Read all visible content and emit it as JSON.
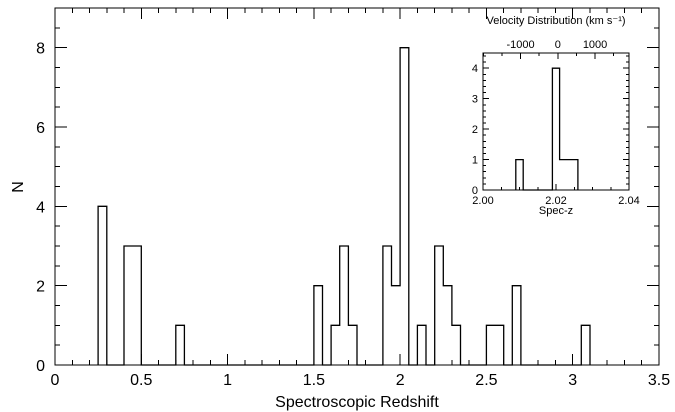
{
  "chart_data": [
    {
      "type": "histogram",
      "title": "",
      "xlabel": "Spectroscopic Redshift",
      "ylabel": "N",
      "xlim": [
        0,
        3.5
      ],
      "ylim": [
        0,
        9
      ],
      "xticks": [
        0,
        0.5,
        1,
        1.5,
        2,
        2.5,
        3,
        3.5
      ],
      "xtick_labels": [
        "0",
        "0.5",
        "1",
        "1.5",
        "2",
        "2.5",
        "3",
        "3.5"
      ],
      "yticks": [
        0,
        2,
        4,
        6,
        8
      ],
      "ytick_labels": [
        "0",
        "2",
        "4",
        "6",
        "8"
      ],
      "grid": false,
      "bin_width": 0.05,
      "bins": [
        {
          "x0": 0.25,
          "x1": 0.3,
          "count": 4
        },
        {
          "x0": 0.4,
          "x1": 0.5,
          "count": 3
        },
        {
          "x0": 0.7,
          "x1": 0.75,
          "count": 1
        },
        {
          "x0": 1.5,
          "x1": 1.55,
          "count": 2
        },
        {
          "x0": 1.6,
          "x1": 1.65,
          "count": 1
        },
        {
          "x0": 1.65,
          "x1": 1.7,
          "count": 3
        },
        {
          "x0": 1.7,
          "x1": 1.75,
          "count": 1
        },
        {
          "x0": 1.9,
          "x1": 1.95,
          "count": 3
        },
        {
          "x0": 1.95,
          "x1": 2.0,
          "count": 2
        },
        {
          "x0": 2.0,
          "x1": 2.05,
          "count": 8
        },
        {
          "x0": 2.1,
          "x1": 2.15,
          "count": 1
        },
        {
          "x0": 2.2,
          "x1": 2.25,
          "count": 3
        },
        {
          "x0": 2.25,
          "x1": 2.3,
          "count": 2
        },
        {
          "x0": 2.3,
          "x1": 2.35,
          "count": 1
        },
        {
          "x0": 2.5,
          "x1": 2.6,
          "count": 1
        },
        {
          "x0": 2.65,
          "x1": 2.7,
          "count": 2
        },
        {
          "x0": 3.05,
          "x1": 3.1,
          "count": 1
        }
      ]
    },
    {
      "type": "histogram",
      "title": "Velocity Distribution (km s⁻¹)",
      "xlabel": "Spec-z",
      "ylabel": "",
      "xlim": [
        2.0,
        2.04
      ],
      "ylim": [
        0,
        4.5
      ],
      "xticks": [
        2.0,
        2.02,
        2.04
      ],
      "xtick_labels": [
        "2.00",
        "2.02",
        "2.04"
      ],
      "yticks": [
        0,
        1,
        2,
        3,
        4
      ],
      "ytick_labels": [
        "0",
        "1",
        "2",
        "3",
        "4"
      ],
      "top_axis": {
        "ticks": [
          -1000,
          0,
          1000
        ],
        "tick_labels": [
          "-1000",
          "0",
          "1000"
        ],
        "minor_step": 500,
        "z_at_zero_velocity": 2.0205,
        "km_s_per_unit_z": 98000
      },
      "legend": "none",
      "grid": false,
      "bins": [
        {
          "x0": 2.009,
          "x1": 2.011,
          "count": 1
        },
        {
          "x0": 2.019,
          "x1": 2.021,
          "count": 4
        },
        {
          "x0": 2.021,
          "x1": 2.026,
          "count": 1
        }
      ]
    }
  ]
}
